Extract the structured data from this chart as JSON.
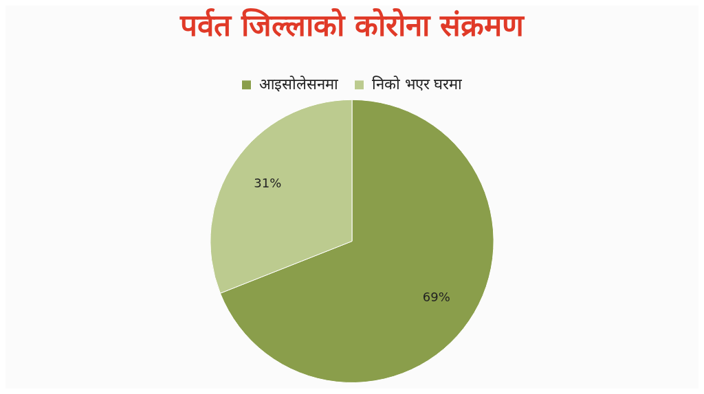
{
  "chart_data": {
    "type": "pie",
    "title": "पर्वत जिल्लाको कोरोना संक्रमण",
    "categories": [
      "आइसोलेसनमा",
      "निको भएर घरमा"
    ],
    "values": [
      69,
      31
    ],
    "colors": [
      "#8a9e4b",
      "#bccb8f"
    ],
    "value_labels": [
      "69%",
      "31%"
    ],
    "legend": "top"
  }
}
